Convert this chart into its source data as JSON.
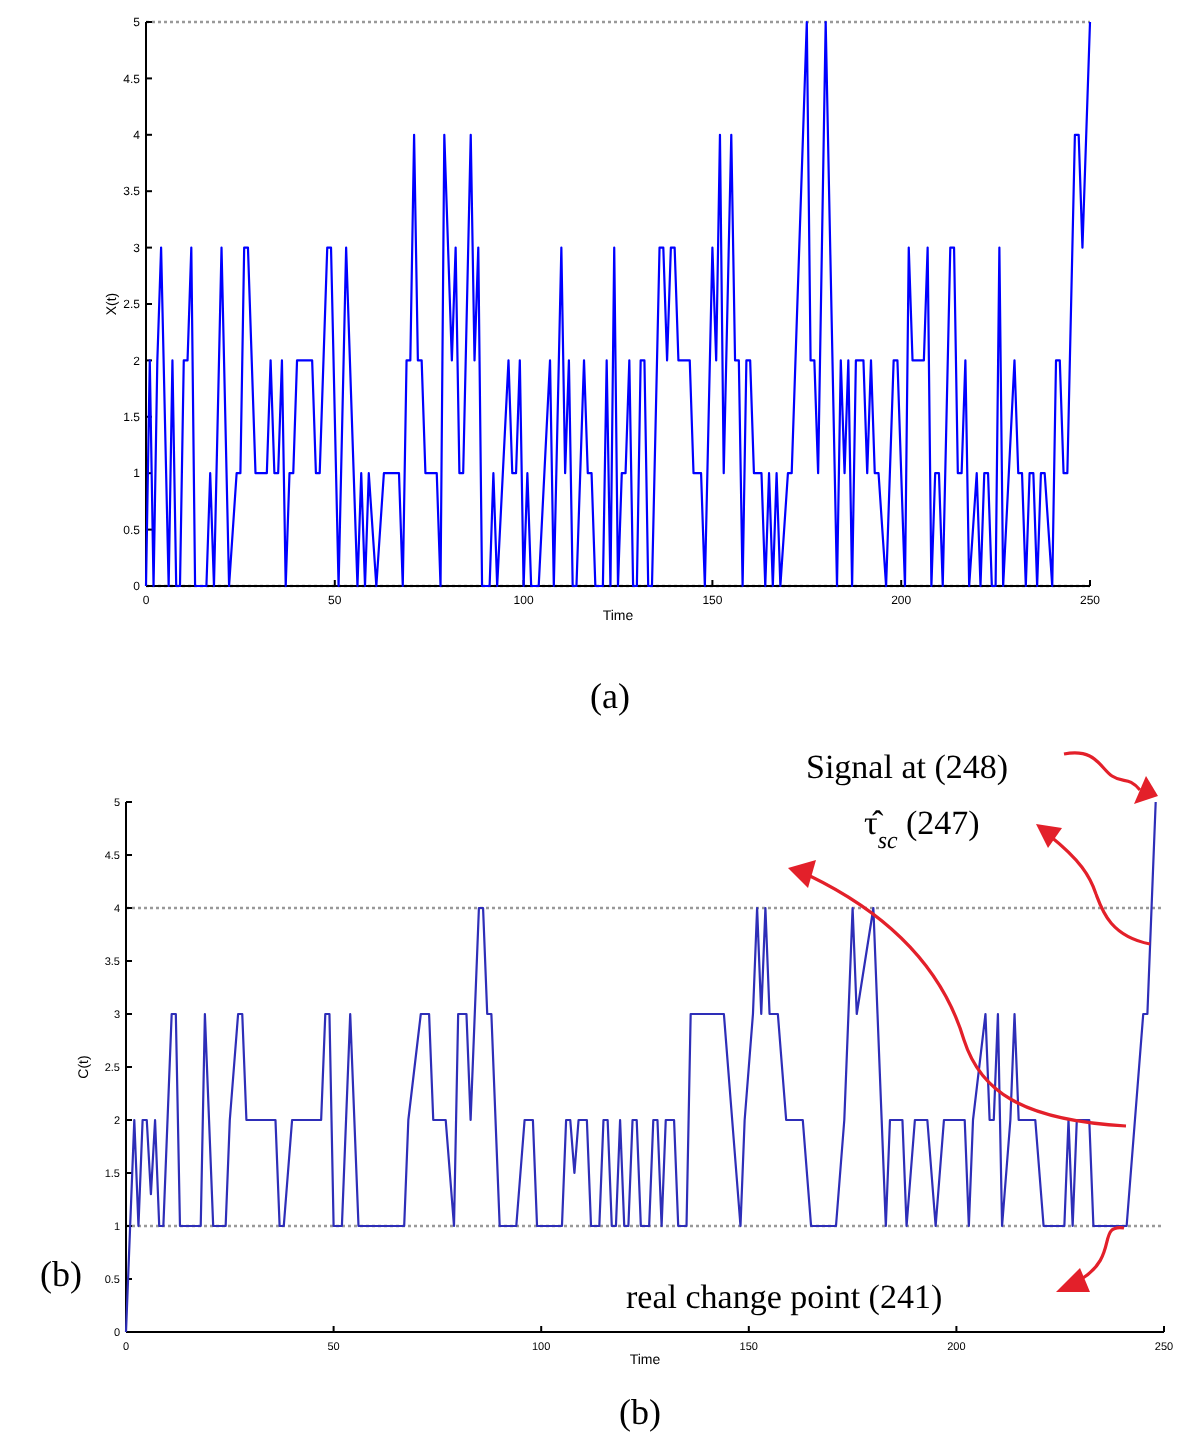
{
  "chart_data": [
    {
      "type": "line",
      "xlabel": "Time",
      "ylabel": "X(t)",
      "xlim": [
        0,
        250
      ],
      "ylim": [
        0,
        5
      ],
      "xticks": [
        0,
        50,
        100,
        150,
        200,
        250
      ],
      "yticks": [
        0,
        0.5,
        1,
        1.5,
        2,
        2.5,
        3,
        3.5,
        4,
        4.5,
        5
      ],
      "ref_lines": [
        {
          "axis": "y",
          "value": 0,
          "color": "#999999",
          "line_style": "dotted"
        },
        {
          "axis": "y",
          "value": 5,
          "color": "#999999",
          "line_style": "dotted"
        }
      ],
      "annotations": [
        "(a)"
      ],
      "x": [
        0,
        1,
        2,
        3,
        4,
        6,
        7,
        8,
        9,
        10,
        11,
        12,
        13,
        16,
        17,
        18,
        20,
        22,
        24,
        25,
        26,
        27,
        29,
        32,
        33,
        34,
        35,
        36,
        37,
        38,
        39,
        40,
        44,
        45,
        46,
        48,
        49,
        51,
        53,
        56,
        57,
        58,
        59,
        61,
        63,
        67,
        68,
        69,
        70,
        71,
        72,
        73,
        74,
        77,
        78,
        79,
        81,
        82,
        83,
        84,
        86,
        87,
        88,
        89,
        91,
        92,
        93,
        96,
        97,
        98,
        99,
        100,
        101,
        102,
        104,
        107,
        108,
        110,
        111,
        112,
        113,
        114,
        116,
        117,
        118,
        119,
        121,
        122,
        123,
        124,
        125,
        126,
        127,
        128,
        129,
        130,
        131,
        132,
        133,
        134,
        136,
        137,
        138,
        139,
        140,
        141,
        144,
        145,
        147,
        148,
        150,
        151,
        152,
        153,
        155,
        156,
        157,
        158,
        159,
        160,
        161,
        163,
        164,
        165,
        166,
        167,
        168,
        170,
        171,
        175,
        176,
        177,
        178,
        180,
        183,
        184,
        185,
        186,
        187,
        188,
        190,
        191,
        192,
        193,
        194,
        196,
        198,
        199,
        201,
        202,
        203,
        206,
        207,
        208,
        209,
        210,
        211,
        213,
        214,
        215,
        216,
        217,
        218,
        220,
        221,
        222,
        223,
        224,
        225,
        226,
        227,
        230,
        231,
        232,
        233,
        234,
        235,
        236,
        237,
        238,
        240,
        241,
        242,
        243,
        244,
        246,
        247,
        248,
        250
      ],
      "series": [
        {
          "color": "#0000ff",
          "values": [
            0,
            2,
            0,
            2,
            3,
            0,
            2,
            0,
            0,
            2,
            2,
            3,
            0,
            0,
            1,
            0,
            3,
            0,
            1,
            1,
            3,
            3,
            1,
            1,
            2,
            1,
            1,
            2,
            0,
            1,
            1,
            2,
            2,
            1,
            1,
            3,
            3,
            0,
            3,
            0,
            1,
            0,
            1,
            0,
            1,
            1,
            0,
            2,
            2,
            4,
            2,
            2,
            1,
            1,
            0,
            4,
            2,
            3,
            1,
            1,
            4,
            2,
            3,
            0,
            0,
            1,
            0,
            2,
            1,
            1,
            2,
            0,
            1,
            0,
            0,
            2,
            0,
            3,
            1,
            2,
            0,
            0,
            2,
            1,
            1,
            0,
            0,
            2,
            0,
            3,
            0,
            1,
            1,
            2,
            0,
            0,
            2,
            2,
            0,
            0,
            3,
            3,
            2,
            3,
            3,
            2,
            2,
            1,
            1,
            0,
            3,
            2,
            4,
            1,
            4,
            2,
            2,
            0,
            2,
            2,
            1,
            1,
            0,
            1,
            0,
            1,
            0,
            1,
            1,
            5,
            2,
            2,
            1,
            5,
            0,
            2,
            1,
            2,
            0,
            2,
            2,
            1,
            2,
            1,
            1,
            0,
            2,
            2,
            0,
            3,
            2,
            2,
            3,
            0,
            1,
            1,
            0,
            3,
            3,
            1,
            1,
            2,
            0,
            1,
            0,
            1,
            1,
            0,
            0,
            3,
            0,
            2,
            1,
            1,
            0,
            1,
            1,
            0,
            1,
            1,
            0,
            2,
            2,
            1,
            1,
            4,
            4,
            3,
            5
          ]
        }
      ]
    },
    {
      "type": "line",
      "xlabel": "Time",
      "ylabel": "C(t)",
      "xlim": [
        0,
        250
      ],
      "ylim": [
        0,
        5
      ],
      "xticks": [
        0,
        50,
        100,
        150,
        200,
        250
      ],
      "yticks": [
        0,
        0.5,
        1,
        1.5,
        2,
        2.5,
        3,
        3.5,
        4,
        4.5,
        5
      ],
      "ref_lines": [
        {
          "axis": "y",
          "value": 4,
          "color": "#999999",
          "line_style": "dotted"
        },
        {
          "axis": "y",
          "value": 1,
          "color": "#999999",
          "line_style": "dotted"
        }
      ],
      "annotations": [
        "(b)",
        "Signal at (248)",
        "τ̂$_{sc}$ (247)",
        "real change point (241)",
        "(b)"
      ],
      "x": [
        0,
        1,
        2,
        3,
        4,
        5,
        6,
        7,
        8,
        9,
        10,
        11,
        12,
        13,
        18,
        19,
        20,
        21,
        24,
        25,
        27,
        28,
        29,
        36,
        37,
        38,
        40,
        47,
        48,
        49,
        50,
        52,
        54,
        56,
        67,
        68,
        71,
        73,
        74,
        77,
        79,
        80,
        82,
        83,
        84,
        85,
        86,
        87,
        88,
        90,
        94,
        96,
        98,
        99,
        105,
        106,
        107,
        108,
        109,
        111,
        112,
        114,
        115,
        116,
        117,
        118,
        119,
        120,
        121,
        122,
        123,
        124,
        126,
        127,
        128,
        129,
        130,
        132,
        133,
        135,
        136,
        144,
        146,
        148,
        149,
        151,
        152,
        153,
        154,
        155,
        157,
        159,
        163,
        165,
        171,
        173,
        174,
        175,
        176,
        180,
        181,
        182,
        183,
        184,
        187,
        188,
        190,
        193,
        195,
        197,
        202,
        203,
        204,
        207,
        208,
        209,
        210,
        211,
        213,
        214,
        215,
        219,
        221,
        226,
        227,
        228,
        229,
        232,
        233,
        241,
        243,
        245,
        246,
        247,
        248
      ],
      "series": [
        {
          "color": "#2e2eb8",
          "values": [
            0,
            1,
            2,
            1,
            2,
            2,
            1.3,
            2,
            1,
            1,
            2,
            3,
            3,
            1,
            1,
            3,
            2,
            1,
            1,
            2,
            3,
            3,
            2,
            2,
            1,
            1,
            2,
            2,
            3,
            3,
            1,
            1,
            3,
            1,
            1,
            2,
            3,
            3,
            2,
            2,
            1,
            3,
            3,
            2,
            3,
            4,
            4,
            3,
            3,
            1,
            1,
            2,
            2,
            1,
            1,
            2,
            2,
            1.5,
            2,
            2,
            1,
            1,
            2,
            2,
            1,
            1,
            2,
            1,
            1,
            2,
            2,
            1,
            1,
            2,
            2,
            1,
            2,
            2,
            1,
            1,
            3,
            3,
            2,
            1,
            2,
            3,
            4,
            3,
            4,
            3,
            3,
            2,
            2,
            1,
            1,
            2,
            3,
            4,
            3,
            4,
            3,
            2,
            1,
            2,
            2,
            1,
            2,
            2,
            1,
            2,
            2,
            1,
            2,
            3,
            2,
            2,
            3,
            1,
            2,
            3,
            2,
            2,
            1,
            1,
            2,
            1,
            2,
            2,
            1,
            1,
            2,
            3,
            3,
            4,
            5
          ]
        }
      ]
    }
  ]
}
